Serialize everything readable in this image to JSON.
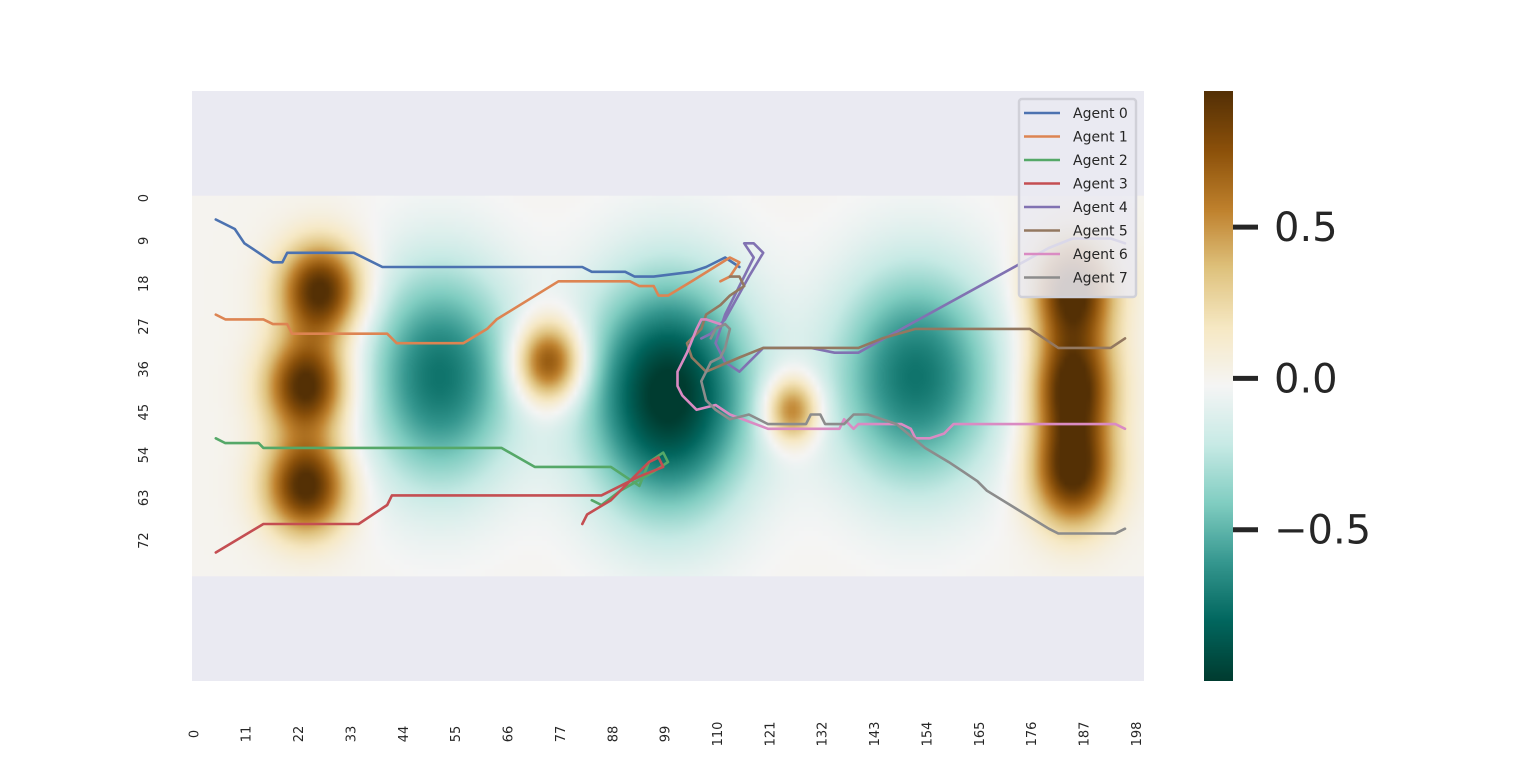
{
  "chart_data": {
    "type": "heatmap",
    "title": "",
    "xlabel": "",
    "ylabel": "",
    "grid": false,
    "x_tick_labels": [
      "0",
      "11",
      "22",
      "33",
      "44",
      "55",
      "66",
      "77",
      "88",
      "99",
      "110",
      "121",
      "132",
      "143",
      "154",
      "165",
      "176",
      "187",
      "198"
    ],
    "y_tick_labels": [
      "0",
      "9",
      "18",
      "27",
      "36",
      "45",
      "54",
      "63",
      "72"
    ],
    "xlim": [
      0,
      200
    ],
    "ylim": [
      0,
      80
    ],
    "y_axis_visible_range": [
      -22,
      102
    ],
    "heatmap_range": [
      -1.0,
      0.95
    ],
    "colormap": "BrBG_r",
    "colorbar": {
      "ticks": [
        0.5,
        0.0,
        -0.5
      ],
      "tick_labels": [
        "0.5",
        "0.0",
        "−0.5"
      ]
    },
    "bumps": [
      {
        "x": 27,
        "y": 20,
        "amp": 1.0,
        "sx": 6,
        "sy": 7
      },
      {
        "x": 24,
        "y": 40,
        "amp": 1.0,
        "sx": 6,
        "sy": 7
      },
      {
        "x": 24,
        "y": 61,
        "amp": 1.0,
        "sx": 6,
        "sy": 7
      },
      {
        "x": 75,
        "y": 35,
        "amp": 0.9,
        "sx": 5,
        "sy": 6
      },
      {
        "x": 126,
        "y": 45,
        "amp": 0.7,
        "sx": 4,
        "sy": 5
      },
      {
        "x": 185,
        "y": 20,
        "amp": 1.0,
        "sx": 6,
        "sy": 8
      },
      {
        "x": 185,
        "y": 40,
        "amp": 1.0,
        "sx": 6,
        "sy": 8
      },
      {
        "x": 185,
        "y": 58,
        "amp": 1.0,
        "sx": 6,
        "sy": 8
      },
      {
        "x": 52,
        "y": 38,
        "amp": -0.75,
        "sx": 11,
        "sy": 16
      },
      {
        "x": 100,
        "y": 42,
        "amp": -1.05,
        "sx": 12,
        "sy": 17
      },
      {
        "x": 152,
        "y": 38,
        "amp": -0.75,
        "sx": 12,
        "sy": 16
      }
    ],
    "legend_position": "upper-right",
    "series": [
      {
        "name": "Agent 0",
        "color": "#4c72b0",
        "points": [
          [
            5,
            5
          ],
          [
            9,
            7
          ],
          [
            11,
            10
          ],
          [
            17,
            14
          ],
          [
            19,
            14
          ],
          [
            20,
            12
          ],
          [
            34,
            12
          ],
          [
            40,
            15
          ],
          [
            82,
            15
          ],
          [
            84,
            16
          ],
          [
            91,
            16
          ],
          [
            93,
            17
          ],
          [
            97,
            17
          ],
          [
            105,
            16
          ],
          [
            108,
            15
          ],
          [
            112,
            13
          ],
          [
            115,
            15
          ]
        ]
      },
      {
        "name": "Agent 1",
        "color": "#dd8452",
        "points": [
          [
            5,
            25
          ],
          [
            7,
            26
          ],
          [
            15,
            26
          ],
          [
            17,
            27
          ],
          [
            20,
            27
          ],
          [
            21,
            29
          ],
          [
            41,
            29
          ],
          [
            43,
            31
          ],
          [
            57,
            31
          ],
          [
            62,
            28
          ],
          [
            64,
            26
          ],
          [
            77,
            18
          ],
          [
            92,
            18
          ],
          [
            94,
            19
          ],
          [
            97,
            19
          ],
          [
            98,
            21
          ],
          [
            100,
            21
          ],
          [
            105,
            18
          ],
          [
            113,
            13
          ],
          [
            115,
            14
          ],
          [
            113,
            17
          ],
          [
            111,
            18
          ]
        ]
      },
      {
        "name": "Agent 2",
        "color": "#55a868",
        "points": [
          [
            5,
            51
          ],
          [
            7,
            52
          ],
          [
            14,
            52
          ],
          [
            15,
            53
          ],
          [
            65,
            53
          ],
          [
            72,
            57
          ],
          [
            88,
            57
          ],
          [
            94,
            61
          ],
          [
            96,
            56
          ],
          [
            99,
            54
          ],
          [
            100,
            56
          ],
          [
            97,
            58
          ],
          [
            90,
            62
          ],
          [
            86,
            65
          ],
          [
            84,
            64
          ]
        ]
      },
      {
        "name": "Agent 3",
        "color": "#c44e52",
        "points": [
          [
            5,
            75
          ],
          [
            15,
            69
          ],
          [
            35,
            69
          ],
          [
            41,
            65
          ],
          [
            42,
            63
          ],
          [
            86,
            63
          ],
          [
            90,
            61
          ],
          [
            94,
            59
          ],
          [
            99,
            57
          ],
          [
            98,
            55
          ],
          [
            96,
            56
          ],
          [
            94,
            58
          ],
          [
            88,
            64
          ],
          [
            83,
            67
          ],
          [
            82,
            69
          ]
        ]
      },
      {
        "name": "Agent 4",
        "color": "#8172b2",
        "points": [
          [
            196,
            10
          ],
          [
            193,
            9
          ],
          [
            185,
            9
          ],
          [
            180,
            11
          ],
          [
            140,
            33
          ],
          [
            135,
            33
          ],
          [
            130,
            32
          ],
          [
            120,
            32
          ],
          [
            115,
            37
          ],
          [
            112,
            35
          ],
          [
            110,
            31
          ],
          [
            112,
            25
          ],
          [
            118,
            13
          ],
          [
            116,
            10
          ],
          [
            118,
            10
          ],
          [
            120,
            12
          ],
          [
            117,
            17
          ],
          [
            112,
            26
          ],
          [
            109,
            29
          ],
          [
            107,
            30
          ]
        ]
      },
      {
        "name": "Agent 5",
        "color": "#937860",
        "points": [
          [
            196,
            30
          ],
          [
            193,
            32
          ],
          [
            182,
            32
          ],
          [
            176,
            28
          ],
          [
            152,
            28
          ],
          [
            145,
            30
          ],
          [
            140,
            32
          ],
          [
            120,
            32
          ],
          [
            115,
            34
          ],
          [
            108,
            37
          ],
          [
            105,
            34
          ],
          [
            104,
            31
          ],
          [
            107,
            28
          ],
          [
            108,
            25
          ],
          [
            111,
            23
          ],
          [
            113,
            21
          ],
          [
            116,
            19
          ],
          [
            115,
            17
          ],
          [
            113,
            17
          ]
        ]
      },
      {
        "name": "Agent 6",
        "color": "#da8bc3",
        "points": [
          [
            196,
            49
          ],
          [
            194,
            48
          ],
          [
            170,
            48
          ],
          [
            160,
            48
          ],
          [
            159,
            49
          ],
          [
            158,
            50
          ],
          [
            155,
            51
          ],
          [
            152,
            51
          ],
          [
            151,
            49
          ],
          [
            149,
            48
          ],
          [
            140,
            48
          ],
          [
            139,
            49
          ],
          [
            138,
            48
          ],
          [
            137,
            47
          ],
          [
            136,
            49
          ],
          [
            121,
            49
          ],
          [
            113,
            46
          ],
          [
            110,
            44
          ],
          [
            106,
            45
          ],
          [
            103,
            42
          ],
          [
            102,
            40
          ],
          [
            102,
            37
          ],
          [
            104,
            33
          ],
          [
            106,
            28
          ],
          [
            107,
            26
          ],
          [
            108,
            26
          ],
          [
            111,
            27
          ]
        ]
      },
      {
        "name": "Agent 7",
        "color": "#8c8c8c",
        "points": [
          [
            196,
            70
          ],
          [
            194,
            71
          ],
          [
            182,
            71
          ],
          [
            180,
            70
          ],
          [
            167,
            62
          ],
          [
            165,
            60
          ],
          [
            162,
            58
          ],
          [
            159,
            56
          ],
          [
            154,
            53
          ],
          [
            148,
            48
          ],
          [
            142,
            46
          ],
          [
            139,
            46
          ],
          [
            137,
            48
          ],
          [
            133,
            48
          ],
          [
            132,
            46
          ],
          [
            130,
            46
          ],
          [
            129,
            48
          ],
          [
            121,
            48
          ],
          [
            117,
            46
          ],
          [
            113,
            47
          ],
          [
            110,
            45
          ],
          [
            108,
            43
          ],
          [
            107,
            39
          ],
          [
            108,
            37
          ],
          [
            109,
            35
          ],
          [
            111,
            34
          ],
          [
            112,
            32
          ],
          [
            113,
            28
          ],
          [
            112,
            27
          ],
          [
            110,
            28
          ],
          [
            109,
            30
          ]
        ]
      }
    ]
  }
}
